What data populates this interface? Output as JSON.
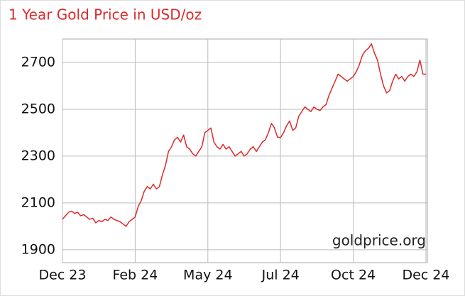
{
  "chart_data": {
    "type": "line",
    "title": "1 Year Gold Price in USD/oz",
    "annotation": "goldprice.org",
    "categories": [
      "Dec 23",
      null,
      null,
      null,
      null,
      null,
      null,
      null,
      null,
      null,
      null,
      null,
      null,
      null,
      null,
      null,
      null,
      null,
      null,
      null,
      null,
      null,
      null,
      null,
      "Feb 24",
      null,
      null,
      null,
      null,
      null,
      null,
      null,
      null,
      null,
      null,
      null,
      null,
      null,
      null,
      null,
      null,
      null,
      null,
      null,
      null,
      null,
      null,
      null,
      "May 24",
      null,
      null,
      null,
      null,
      null,
      null,
      null,
      null,
      null,
      null,
      null,
      null,
      null,
      null,
      null,
      null,
      null,
      null,
      null,
      null,
      null,
      null,
      null,
      "Jul 24",
      null,
      null,
      null,
      null,
      null,
      null,
      null,
      null,
      null,
      null,
      null,
      null,
      null,
      null,
      null,
      null,
      null,
      null,
      null,
      null,
      null,
      null,
      null,
      "Oct 24",
      null,
      null,
      null,
      null,
      null,
      null,
      null,
      null,
      null,
      null,
      null,
      null,
      null,
      null,
      null,
      null,
      null,
      null,
      null,
      null,
      null,
      null,
      null,
      "Dec 24"
    ],
    "values": [
      2030,
      2045,
      2060,
      2065,
      2055,
      2060,
      2045,
      2050,
      2040,
      2030,
      2035,
      2015,
      2025,
      2020,
      2030,
      2025,
      2040,
      2030,
      2025,
      2020,
      2010,
      2000,
      2020,
      2030,
      2040,
      2085,
      2110,
      2150,
      2170,
      2160,
      2180,
      2160,
      2170,
      2220,
      2260,
      2320,
      2340,
      2370,
      2380,
      2360,
      2390,
      2340,
      2330,
      2310,
      2300,
      2320,
      2340,
      2400,
      2410,
      2420,
      2360,
      2340,
      2330,
      2350,
      2330,
      2340,
      2320,
      2300,
      2310,
      2320,
      2300,
      2310,
      2330,
      2340,
      2320,
      2340,
      2360,
      2370,
      2400,
      2440,
      2420,
      2380,
      2380,
      2400,
      2430,
      2450,
      2410,
      2420,
      2470,
      2490,
      2510,
      2500,
      2490,
      2510,
      2500,
      2495,
      2510,
      2520,
      2560,
      2590,
      2620,
      2650,
      2640,
      2630,
      2620,
      2630,
      2640,
      2660,
      2690,
      2730,
      2750,
      2760,
      2780,
      2740,
      2710,
      2650,
      2600,
      2570,
      2580,
      2620,
      2650,
      2630,
      2640,
      2620,
      2640,
      2650,
      2640,
      2660,
      2710,
      2650,
      2650
    ],
    "color": "#dd2a2a",
    "ylim": [
      1845,
      2800
    ],
    "yticks": [
      1900,
      2100,
      2300,
      2500,
      2700
    ],
    "grid": true
  }
}
